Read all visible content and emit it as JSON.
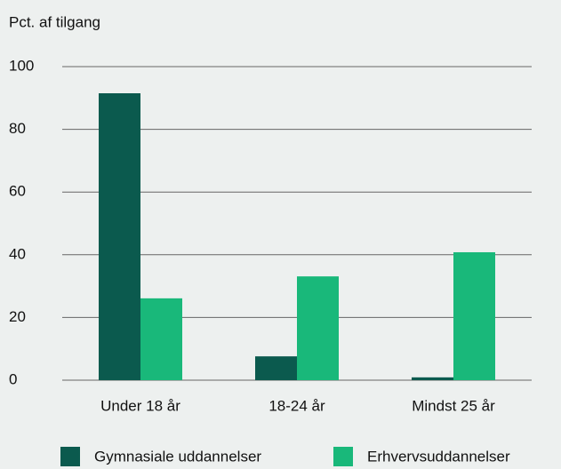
{
  "chart_data": {
    "type": "bar",
    "ylabel": "Pct. af tilgang",
    "categories": [
      "Under 18 år",
      "18-24 år",
      "Mindst 25 år"
    ],
    "series": [
      {
        "name": "Gymnasiale uddannelser",
        "color": "#0b5a4e",
        "values": [
          91.5,
          7.6,
          0.9
        ]
      },
      {
        "name": "Erhvervsuddannelser",
        "color": "#19b87a",
        "values": [
          26.1,
          33.1,
          40.8
        ]
      }
    ],
    "ylim": [
      0,
      100
    ],
    "yticks": [
      0,
      20,
      40,
      60,
      80,
      100
    ],
    "grid": true,
    "legend": "bottom"
  }
}
